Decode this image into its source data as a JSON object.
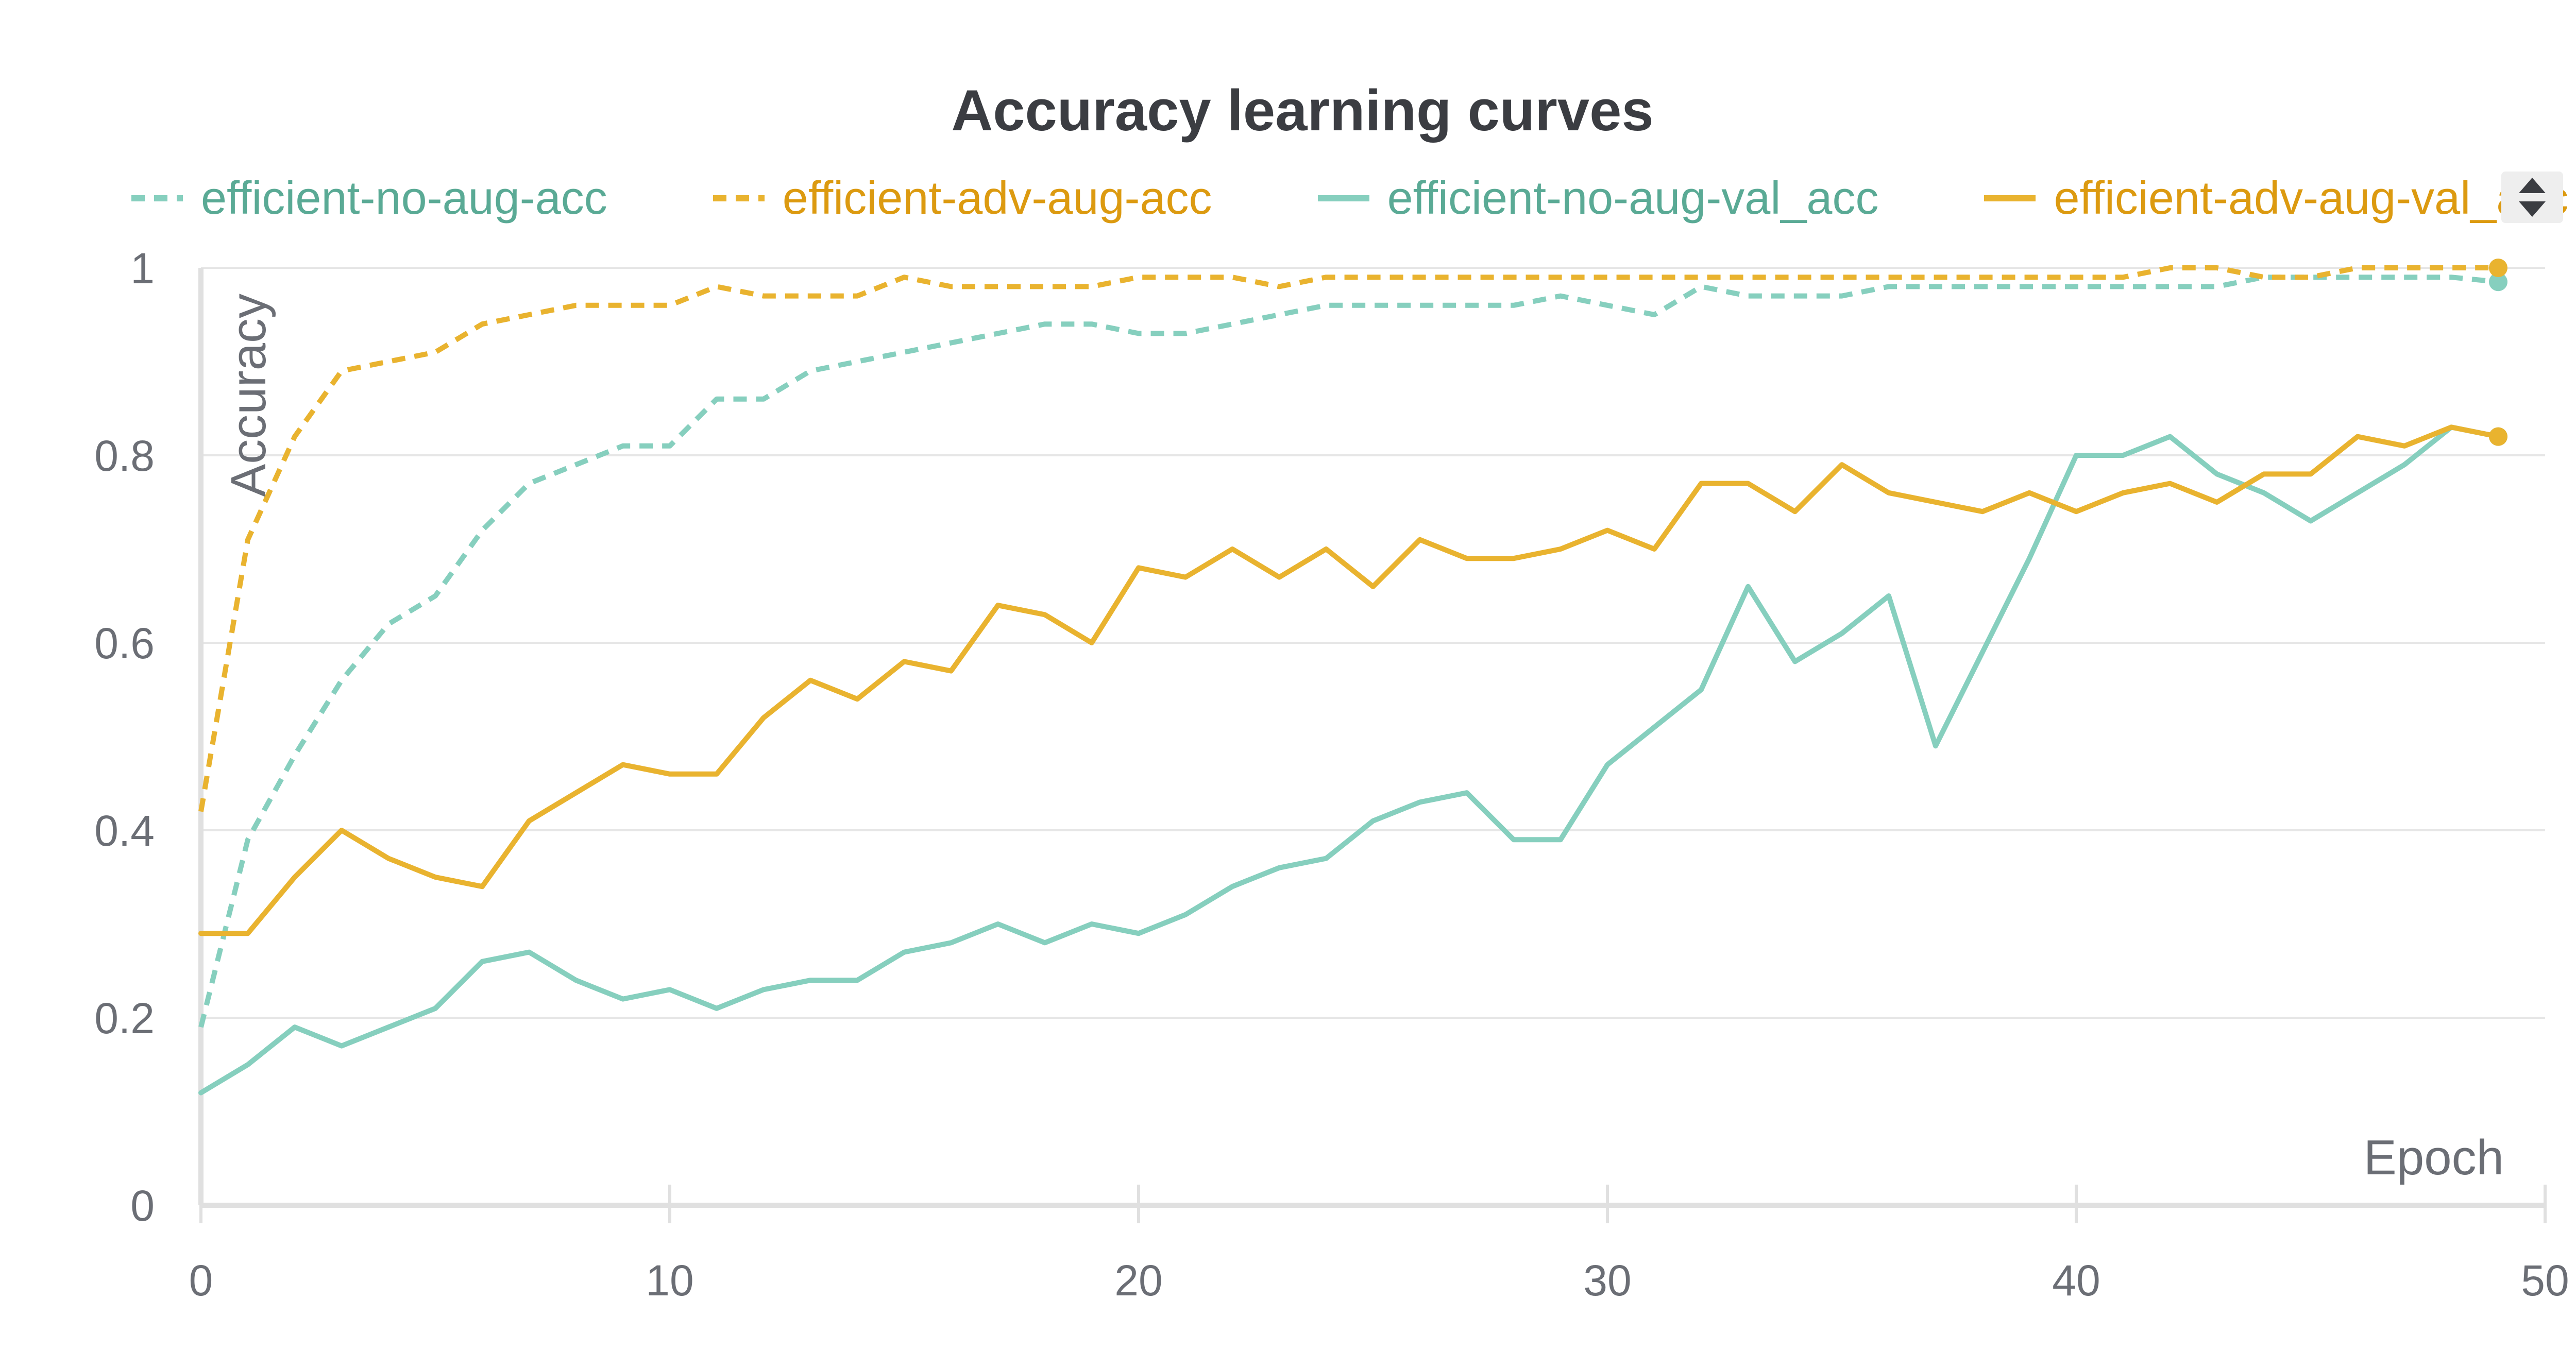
{
  "chart_data": {
    "type": "line",
    "title": "Accuracy learning curves",
    "xlabel": "Epoch",
    "ylabel": "Accuracy",
    "xlim": [
      0,
      50
    ],
    "ylim": [
      0,
      1
    ],
    "xticks": [
      0,
      10,
      20,
      30,
      40,
      50
    ],
    "yticks": [
      0,
      0.2,
      0.4,
      0.6,
      0.8,
      1
    ],
    "ytick_labels": [
      "0",
      "0.2",
      "0.4",
      "0.6",
      "0.8",
      "1"
    ],
    "grid": true,
    "legend_position": "top",
    "x": [
      0,
      1,
      2,
      3,
      4,
      5,
      6,
      7,
      8,
      9,
      10,
      11,
      12,
      13,
      14,
      15,
      16,
      17,
      18,
      19,
      20,
      21,
      22,
      23,
      24,
      25,
      26,
      27,
      28,
      29,
      30,
      31,
      32,
      33,
      34,
      35,
      36,
      37,
      38,
      39,
      40,
      41,
      42,
      43,
      44,
      45,
      46,
      47,
      48,
      49
    ],
    "series": [
      {
        "name": "efficient-no-aug-acc",
        "color": "#86cfbe",
        "dash": true,
        "values": [
          0.19,
          0.39,
          0.48,
          0.56,
          0.62,
          0.65,
          0.72,
          0.77,
          0.79,
          0.81,
          0.81,
          0.86,
          0.86,
          0.89,
          0.9,
          0.91,
          0.92,
          0.93,
          0.94,
          0.94,
          0.93,
          0.93,
          0.94,
          0.95,
          0.96,
          0.96,
          0.96,
          0.96,
          0.96,
          0.97,
          0.96,
          0.95,
          0.98,
          0.97,
          0.97,
          0.97,
          0.98,
          0.98,
          0.98,
          0.98,
          0.98,
          0.98,
          0.98,
          0.98,
          0.99,
          0.99,
          0.99,
          0.99,
          0.99,
          0.985
        ]
      },
      {
        "name": "efficient-adv-aug-acc",
        "color": "#e9b32f",
        "dash": true,
        "values": [
          0.42,
          0.71,
          0.82,
          0.89,
          0.9,
          0.91,
          0.94,
          0.95,
          0.96,
          0.96,
          0.96,
          0.98,
          0.97,
          0.97,
          0.97,
          0.99,
          0.98,
          0.98,
          0.98,
          0.98,
          0.99,
          0.99,
          0.99,
          0.98,
          0.99,
          0.99,
          0.99,
          0.99,
          0.99,
          0.99,
          0.99,
          0.99,
          0.99,
          0.99,
          0.99,
          0.99,
          0.99,
          0.99,
          0.99,
          0.99,
          0.99,
          0.99,
          1.0,
          1.0,
          0.99,
          0.99,
          1.0,
          1.0,
          1.0,
          1.0
        ]
      },
      {
        "name": "efficient-no-aug-val_acc",
        "color": "#86cfbe",
        "dash": false,
        "values": [
          0.12,
          0.15,
          0.19,
          0.17,
          0.19,
          0.21,
          0.26,
          0.27,
          0.24,
          0.22,
          0.23,
          0.21,
          0.23,
          0.24,
          0.24,
          0.27,
          0.28,
          0.3,
          0.28,
          0.3,
          0.29,
          0.31,
          0.34,
          0.36,
          0.37,
          0.41,
          0.43,
          0.44,
          0.39,
          0.39,
          0.47,
          0.51,
          0.55,
          0.66,
          0.58,
          0.61,
          0.65,
          0.49,
          0.59,
          0.69,
          0.8,
          0.8,
          0.82,
          0.78,
          0.76,
          0.73,
          0.76,
          0.79,
          0.83,
          0.82
        ]
      },
      {
        "name": "efficient-adv-aug-val_acc",
        "color": "#e9b32f",
        "dash": false,
        "values": [
          0.29,
          0.29,
          0.35,
          0.4,
          0.37,
          0.35,
          0.34,
          0.41,
          0.44,
          0.47,
          0.46,
          0.46,
          0.52,
          0.56,
          0.54,
          0.58,
          0.57,
          0.64,
          0.63,
          0.6,
          0.68,
          0.67,
          0.7,
          0.67,
          0.7,
          0.66,
          0.71,
          0.69,
          0.69,
          0.7,
          0.72,
          0.7,
          0.77,
          0.77,
          0.74,
          0.79,
          0.76,
          0.75,
          0.74,
          0.76,
          0.74,
          0.76,
          0.77,
          0.75,
          0.78,
          0.78,
          0.82,
          0.81,
          0.83,
          0.82
        ]
      }
    ]
  }
}
